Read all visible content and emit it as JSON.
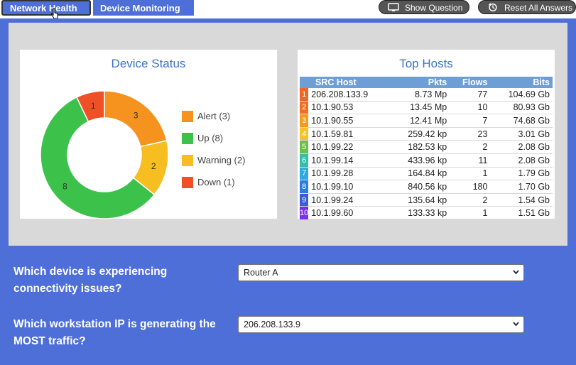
{
  "tabs": [
    {
      "label": "Network Health"
    },
    {
      "label": "Device Monitoring"
    }
  ],
  "toolbar": {
    "show_question": "Show Question",
    "reset_answers": "Reset All Answers"
  },
  "device_status": {
    "title": "Device Status",
    "legend": [
      {
        "label": "Alert (3)",
        "color": "#f5931e"
      },
      {
        "label": "Up (8)",
        "color": "#3cc24a"
      },
      {
        "label": "Warning (2)",
        "color": "#f6be21"
      },
      {
        "label": "Down (1)",
        "color": "#ef5026"
      }
    ]
  },
  "chart_data": {
    "type": "pie",
    "title": "Device Status",
    "categories": [
      "Alert",
      "Warning",
      "Up",
      "Down"
    ],
    "values": [
      3,
      2,
      8,
      1
    ],
    "colors": [
      "#f5931e",
      "#f6be21",
      "#3cc24a",
      "#ef5026"
    ],
    "legend": "right"
  },
  "top_hosts": {
    "title": "Top Hosts",
    "columns": [
      "SRC Host",
      "Pkts",
      "Flows",
      "Bits"
    ],
    "rows": [
      {
        "rank": "1",
        "color": "#f26522",
        "host": "206.208.133.9",
        "pkts": "8.73 Mp",
        "flows": "77",
        "bits": "104.69 Gb"
      },
      {
        "rank": "2",
        "color": "#f26f22",
        "host": "10.1.90.53",
        "pkts": "13.45 Mp",
        "flows": "10",
        "bits": "80.93 Gb"
      },
      {
        "rank": "3",
        "color": "#f59a1c",
        "host": "10.1.90.55",
        "pkts": "12.41 Mp",
        "flows": "7",
        "bits": "74.68 Gb"
      },
      {
        "rank": "4",
        "color": "#f6c12a",
        "host": "10.1.59.81",
        "pkts": "259.42 kp",
        "flows": "23",
        "bits": "3.01 Gb"
      },
      {
        "rank": "5",
        "color": "#6cc04a",
        "host": "10.1.99.22",
        "pkts": "182.53 kp",
        "flows": "2",
        "bits": "2.08 Gb"
      },
      {
        "rank": "6",
        "color": "#35bfa6",
        "host": "10.1.99.14",
        "pkts": "433.96 kp",
        "flows": "11",
        "bits": "2.08 Gb"
      },
      {
        "rank": "7",
        "color": "#2fa9e3",
        "host": "10.1.99.28",
        "pkts": "164.84 kp",
        "flows": "1",
        "bits": "1.79 Gb"
      },
      {
        "rank": "8",
        "color": "#2a7de1",
        "host": "10.1.99.10",
        "pkts": "840.56 kp",
        "flows": "180",
        "bits": "1.70 Gb"
      },
      {
        "rank": "9",
        "color": "#3a5fcd",
        "host": "10.1.99.24",
        "pkts": "135.64 kp",
        "flows": "2",
        "bits": "1.54 Gb"
      },
      {
        "rank": "10",
        "color": "#7b2ff0",
        "host": "10.1.99.60",
        "pkts": "133.33 kp",
        "flows": "1",
        "bits": "1.51 Gb"
      }
    ]
  },
  "questions": [
    {
      "text": "Which device is experiencing connectivity issues?",
      "selected": "Router A"
    },
    {
      "text": "Which workstation IP is generating the MOST traffic?",
      "selected": "206.208.133.9"
    }
  ]
}
